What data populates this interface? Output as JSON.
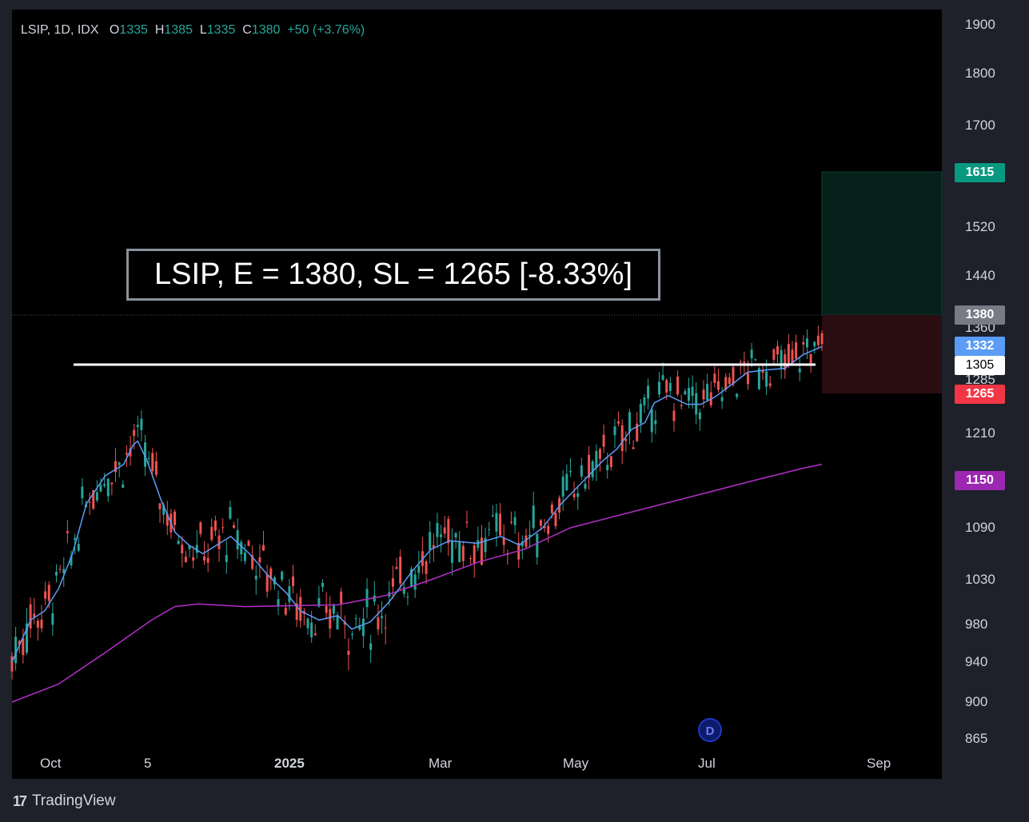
{
  "header": {
    "symbol": "LSIP, 1D, IDX",
    "open_label": "O",
    "open": "1335",
    "high_label": "H",
    "high": "1385",
    "low_label": "L",
    "low": "1335",
    "close_label": "C",
    "close": "1380",
    "change": "+50 (+3.76%)"
  },
  "banner_text": "LSIP, E = 1380, SL = 1265 [-8.33%]",
  "branding": "TradingView",
  "event_marker": "D",
  "colors": {
    "up": "#26a69a",
    "down": "#ef5350",
    "ma_fast": "#5b9cf6",
    "ma_slow": "#b22fc8",
    "target": "#089981",
    "stop": "#f23645"
  },
  "chart_data": {
    "type": "candlestick",
    "y_ticks": [
      "1900",
      "1800",
      "1700",
      "1520",
      "1440",
      "1360",
      "1285",
      "1210",
      "1090",
      "1030",
      "980",
      "940",
      "900",
      "865"
    ],
    "x_ticks": [
      "Oct",
      "5",
      "2025",
      "Mar",
      "May",
      "Jul",
      "Sep"
    ],
    "price_tags": [
      {
        "value": "1615",
        "color": "#089981"
      },
      {
        "value": "1380",
        "color": "#787b86"
      },
      {
        "value": "1332",
        "color": "#5b9cf6"
      },
      {
        "value": "1305",
        "color": "#ffffff"
      },
      {
        "value": "1265",
        "color": "#f23645"
      },
      {
        "value": "1150",
        "color": "#9c27b0"
      }
    ],
    "resistance_level": 1305,
    "entry": 1380,
    "stop_loss": 1265,
    "target": 1615,
    "ma_fast_series": [
      [
        0,
        940
      ],
      [
        0.04,
        985
      ],
      [
        0.07,
        995
      ],
      [
        0.1,
        1020
      ],
      [
        0.13,
        1060
      ],
      [
        0.16,
        1120
      ],
      [
        0.2,
        1155
      ],
      [
        0.24,
        1170
      ],
      [
        0.26,
        1195
      ],
      [
        0.27,
        1200
      ],
      [
        0.29,
        1175
      ],
      [
        0.32,
        1125
      ],
      [
        0.35,
        1085
      ],
      [
        0.38,
        1070
      ],
      [
        0.41,
        1060
      ],
      [
        0.44,
        1070
      ],
      [
        0.47,
        1080
      ],
      [
        0.51,
        1060
      ],
      [
        0.55,
        1035
      ],
      [
        0.59,
        1015
      ],
      [
        0.62,
        995
      ],
      [
        0.66,
        985
      ],
      [
        0.7,
        990
      ],
      [
        0.73,
        975
      ],
      [
        0.77,
        983
      ],
      [
        0.81,
        1005
      ],
      [
        0.86,
        1040
      ],
      [
        0.9,
        1065
      ],
      [
        0.94,
        1075
      ],
      [
        1,
        1072
      ],
      [
        1.05,
        1080
      ],
      [
        1.09,
        1070
      ],
      [
        1.14,
        1090
      ],
      [
        1.18,
        1120
      ],
      [
        1.23,
        1150
      ],
      [
        1.27,
        1175
      ],
      [
        1.3,
        1190
      ],
      [
        1.33,
        1215
      ],
      [
        1.36,
        1225
      ],
      [
        1.38,
        1252
      ],
      [
        1.41,
        1262
      ],
      [
        1.45,
        1250
      ],
      [
        1.48,
        1250
      ],
      [
        1.51,
        1260
      ],
      [
        1.55,
        1280
      ],
      [
        1.58,
        1295
      ],
      [
        1.62,
        1298
      ],
      [
        1.66,
        1300
      ],
      [
        1.7,
        1320
      ],
      [
        1.74,
        1332
      ]
    ],
    "ma_slow_series": [
      [
        0,
        900
      ],
      [
        0.1,
        918
      ],
      [
        0.2,
        950
      ],
      [
        0.3,
        985
      ],
      [
        0.35,
        1000
      ],
      [
        0.4,
        1003
      ],
      [
        0.5,
        1000
      ],
      [
        0.6,
        1001
      ],
      [
        0.7,
        1002
      ],
      [
        0.8,
        1012
      ],
      [
        0.9,
        1030
      ],
      [
        1.0,
        1050
      ],
      [
        1.1,
        1065
      ],
      [
        1.2,
        1090
      ],
      [
        1.3,
        1105
      ],
      [
        1.4,
        1120
      ],
      [
        1.5,
        1135
      ],
      [
        1.6,
        1150
      ],
      [
        1.7,
        1165
      ],
      [
        1.74,
        1170
      ]
    ]
  }
}
